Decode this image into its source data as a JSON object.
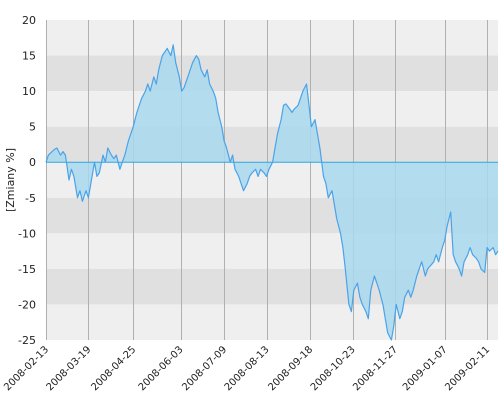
{
  "chart_data": {
    "type": "area",
    "ylabel": "[Zmiany %]",
    "ylim": [
      -25,
      20
    ],
    "yticks": [
      20,
      15,
      10,
      5,
      0,
      -5,
      -10,
      -15,
      -20,
      -25
    ],
    "xticks": [
      "2008-02-13",
      "2008-03-19",
      "2008-04-25",
      "2008-06-03",
      "2008-07-09",
      "2008-08-13",
      "2008-09-18",
      "2008-10-23",
      "2008-11-27",
      "2009-01-07",
      "2009-02-11"
    ],
    "x_range": [
      "2008-02-13",
      "2009-02-20"
    ],
    "grid": true,
    "colors": {
      "line": "#4aa3e8",
      "fill": "#a8d8ee",
      "band_light": "#efefef",
      "band_dark": "#e0e0e0",
      "gridline": "#b0b0b0",
      "zero_line": "#2ea5df"
    },
    "series": [
      {
        "points": [
          [
            "2008-02-13",
            0
          ],
          [
            "2008-02-15",
            1
          ],
          [
            "2008-02-18",
            1.5
          ],
          [
            "2008-02-20",
            1.8
          ],
          [
            "2008-02-22",
            2
          ],
          [
            "2008-02-25",
            1
          ],
          [
            "2008-02-27",
            1.5
          ],
          [
            "2008-02-29",
            1
          ],
          [
            "2008-03-03",
            -2.5
          ],
          [
            "2008-03-05",
            -1
          ],
          [
            "2008-03-07",
            -2
          ],
          [
            "2008-03-10",
            -5
          ],
          [
            "2008-03-12",
            -4
          ],
          [
            "2008-03-14",
            -5.5
          ],
          [
            "2008-03-17",
            -4
          ],
          [
            "2008-03-19",
            -5
          ],
          [
            "2008-03-21",
            -3
          ],
          [
            "2008-03-24",
            0
          ],
          [
            "2008-03-26",
            -2
          ],
          [
            "2008-03-28",
            -1.5
          ],
          [
            "2008-03-31",
            1
          ],
          [
            "2008-04-02",
            0
          ],
          [
            "2008-04-04",
            2
          ],
          [
            "2008-04-07",
            1
          ],
          [
            "2008-04-09",
            0.5
          ],
          [
            "2008-04-11",
            1
          ],
          [
            "2008-04-14",
            -1
          ],
          [
            "2008-04-16",
            0
          ],
          [
            "2008-04-18",
            1
          ],
          [
            "2008-04-21",
            3
          ],
          [
            "2008-04-23",
            4
          ],
          [
            "2008-04-25",
            5
          ],
          [
            "2008-04-28",
            7
          ],
          [
            "2008-04-30",
            8
          ],
          [
            "2008-05-02",
            9
          ],
          [
            "2008-05-05",
            10
          ],
          [
            "2008-05-07",
            11
          ],
          [
            "2008-05-09",
            10
          ],
          [
            "2008-05-12",
            12
          ],
          [
            "2008-05-14",
            11
          ],
          [
            "2008-05-16",
            13
          ],
          [
            "2008-05-19",
            15
          ],
          [
            "2008-05-21",
            15.5
          ],
          [
            "2008-05-23",
            16
          ],
          [
            "2008-05-26",
            15
          ],
          [
            "2008-05-28",
            16.5
          ],
          [
            "2008-05-30",
            14
          ],
          [
            "2008-06-02",
            12
          ],
          [
            "2008-06-04",
            10
          ],
          [
            "2008-06-06",
            10.5
          ],
          [
            "2008-06-09",
            12
          ],
          [
            "2008-06-11",
            13
          ],
          [
            "2008-06-13",
            14
          ],
          [
            "2008-06-16",
            15
          ],
          [
            "2008-06-18",
            14.5
          ],
          [
            "2008-06-20",
            13
          ],
          [
            "2008-06-23",
            12
          ],
          [
            "2008-06-25",
            13
          ],
          [
            "2008-06-27",
            11
          ],
          [
            "2008-06-30",
            10
          ],
          [
            "2008-07-02",
            9
          ],
          [
            "2008-07-04",
            7
          ],
          [
            "2008-07-07",
            5
          ],
          [
            "2008-07-09",
            3
          ],
          [
            "2008-07-11",
            2
          ],
          [
            "2008-07-14",
            0
          ],
          [
            "2008-07-16",
            1
          ],
          [
            "2008-07-18",
            -1
          ],
          [
            "2008-07-21",
            -2
          ],
          [
            "2008-07-23",
            -3
          ],
          [
            "2008-07-25",
            -4
          ],
          [
            "2008-07-28",
            -3
          ],
          [
            "2008-07-30",
            -2
          ],
          [
            "2008-08-01",
            -1.5
          ],
          [
            "2008-08-04",
            -1
          ],
          [
            "2008-08-06",
            -2
          ],
          [
            "2008-08-08",
            -1
          ],
          [
            "2008-08-11",
            -1.5
          ],
          [
            "2008-08-13",
            -2
          ],
          [
            "2008-08-15",
            -1
          ],
          [
            "2008-08-18",
            0
          ],
          [
            "2008-08-20",
            2
          ],
          [
            "2008-08-22",
            4
          ],
          [
            "2008-08-25",
            6
          ],
          [
            "2008-08-27",
            8
          ],
          [
            "2008-08-29",
            8.2
          ],
          [
            "2008-09-01",
            7.5
          ],
          [
            "2008-09-03",
            7
          ],
          [
            "2008-09-05",
            7.5
          ],
          [
            "2008-09-08",
            8
          ],
          [
            "2008-09-10",
            9
          ],
          [
            "2008-09-12",
            10
          ],
          [
            "2008-09-15",
            11
          ],
          [
            "2008-09-17",
            8
          ],
          [
            "2008-09-19",
            5
          ],
          [
            "2008-09-22",
            6
          ],
          [
            "2008-09-24",
            4
          ],
          [
            "2008-09-26",
            2
          ],
          [
            "2008-09-29",
            -2
          ],
          [
            "2008-10-01",
            -3
          ],
          [
            "2008-10-03",
            -5
          ],
          [
            "2008-10-06",
            -4
          ],
          [
            "2008-10-08",
            -6
          ],
          [
            "2008-10-10",
            -8
          ],
          [
            "2008-10-13",
            -10
          ],
          [
            "2008-10-15",
            -12
          ],
          [
            "2008-10-17",
            -15
          ],
          [
            "2008-10-20",
            -20
          ],
          [
            "2008-10-22",
            -21
          ],
          [
            "2008-10-24",
            -18
          ],
          [
            "2008-10-27",
            -17
          ],
          [
            "2008-10-29",
            -19
          ],
          [
            "2008-10-31",
            -20
          ],
          [
            "2008-11-03",
            -21
          ],
          [
            "2008-11-05",
            -22
          ],
          [
            "2008-11-07",
            -18
          ],
          [
            "2008-11-10",
            -16
          ],
          [
            "2008-11-12",
            -17
          ],
          [
            "2008-11-14",
            -18
          ],
          [
            "2008-11-17",
            -20
          ],
          [
            "2008-11-19",
            -22
          ],
          [
            "2008-11-21",
            -24
          ],
          [
            "2008-11-24",
            -25
          ],
          [
            "2008-11-26",
            -23
          ],
          [
            "2008-11-28",
            -20
          ],
          [
            "2008-12-01",
            -22
          ],
          [
            "2008-12-03",
            -21
          ],
          [
            "2008-12-05",
            -19
          ],
          [
            "2008-12-08",
            -18
          ],
          [
            "2008-12-10",
            -19
          ],
          [
            "2008-12-12",
            -18
          ],
          [
            "2008-12-15",
            -16
          ],
          [
            "2008-12-17",
            -15
          ],
          [
            "2008-12-19",
            -14
          ],
          [
            "2008-12-22",
            -16
          ],
          [
            "2008-12-24",
            -15
          ],
          [
            "2008-12-29",
            -14
          ],
          [
            "2008-12-31",
            -13
          ],
          [
            "2009-01-02",
            -14
          ],
          [
            "2009-01-05",
            -12
          ],
          [
            "2009-01-07",
            -11
          ],
          [
            "2009-01-09",
            -9
          ],
          [
            "2009-01-12",
            -7
          ],
          [
            "2009-01-14",
            -13
          ],
          [
            "2009-01-16",
            -14
          ],
          [
            "2009-01-19",
            -15
          ],
          [
            "2009-01-21",
            -16
          ],
          [
            "2009-01-23",
            -14
          ],
          [
            "2009-01-26",
            -13
          ],
          [
            "2009-01-28",
            -12
          ],
          [
            "2009-01-30",
            -13
          ],
          [
            "2009-02-02",
            -13.5
          ],
          [
            "2009-02-04",
            -14
          ],
          [
            "2009-02-06",
            -15
          ],
          [
            "2009-02-09",
            -15.5
          ],
          [
            "2009-02-11",
            -12
          ],
          [
            "2009-02-13",
            -12.5
          ],
          [
            "2009-02-16",
            -12
          ],
          [
            "2009-02-18",
            -13
          ],
          [
            "2009-02-20",
            -12.5
          ]
        ]
      }
    ]
  }
}
